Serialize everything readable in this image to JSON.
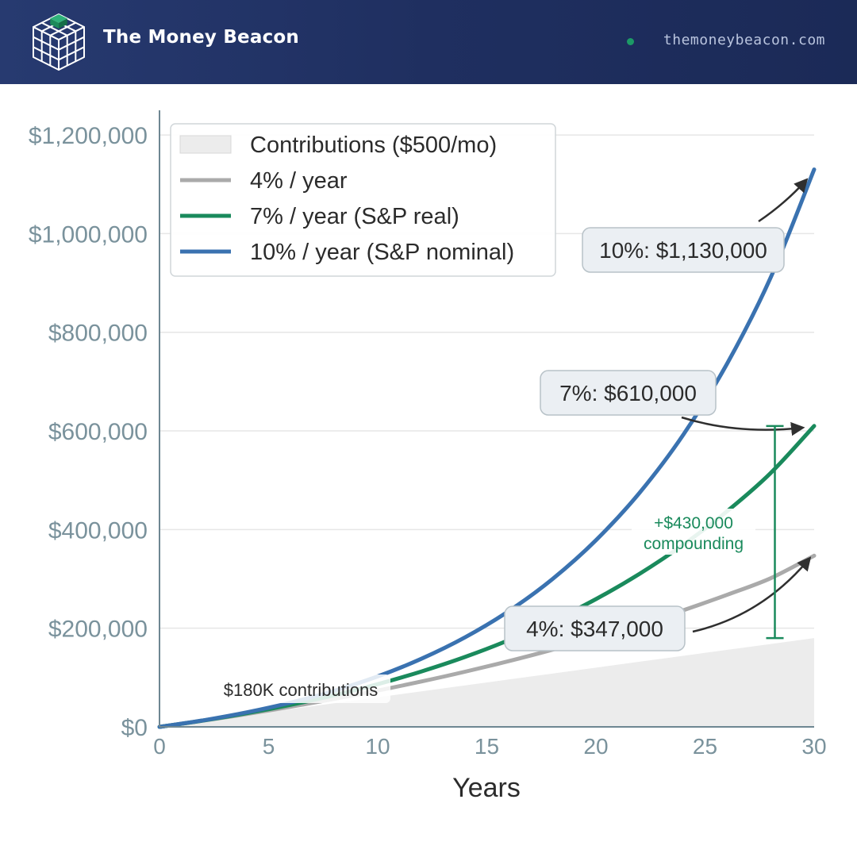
{
  "header": {
    "brand": "The Money Beacon",
    "url": "themoneybeacon.com",
    "logo_icon": "cube-grid-icon"
  },
  "colors": {
    "header_bg": "#1f2f60",
    "accent_green": "#1a8a5c",
    "blue": "#3a72b0",
    "gray": "#aaaaaa",
    "contrib_fill": "#ececec",
    "axis_text": "#7a929c"
  },
  "chart_data": {
    "type": "line",
    "title": "",
    "xlabel": "Years",
    "ylabel": "",
    "xlim": [
      0,
      30
    ],
    "ylim": [
      0,
      1250000
    ],
    "x_ticks": [
      0,
      5,
      10,
      15,
      20,
      25,
      30
    ],
    "x_tick_labels": [
      "0",
      "5",
      "10",
      "15",
      "20",
      "25",
      "30"
    ],
    "y_ticks": [
      0,
      200000,
      400000,
      600000,
      800000,
      1000000,
      1200000
    ],
    "y_tick_labels": [
      "$0",
      "$200,000",
      "$400,000",
      "$600,000",
      "$800,000",
      "$1,000,000",
      "$1,200,000"
    ],
    "grid": "horizontal",
    "legend_position": "top-left",
    "x": [
      0,
      2,
      4,
      6,
      8,
      10,
      12,
      14,
      16,
      18,
      20,
      22,
      24,
      26,
      28,
      30
    ],
    "series": [
      {
        "name": "Contributions ($500/mo)",
        "style": "area",
        "color": "#ececec",
        "values": [
          0,
          12000,
          24000,
          36000,
          48000,
          60000,
          72000,
          84000,
          96000,
          108000,
          120000,
          132000,
          144000,
          156000,
          168000,
          180000
        ]
      },
      {
        "name": "4% / year",
        "style": "line",
        "color": "#aaaaaa",
        "values": [
          0,
          12500,
          26000,
          40700,
          56600,
          73600,
          92000,
          111800,
          133200,
          156300,
          181000,
          207500,
          236400,
          267600,
          301200,
          347000
        ]
      },
      {
        "name": "7% / year (S&P real)",
        "style": "line",
        "color": "#1a8a5c",
        "values": [
          0,
          12850,
          27600,
          44600,
          64100,
          86500,
          112300,
          141700,
          175600,
          214400,
          259000,
          310300,
          369200,
          436700,
          514300,
          610000
        ]
      },
      {
        "name": "10% / year (S&P nominal)",
        "style": "line",
        "color": "#3a72b0",
        "values": [
          0,
          13200,
          29400,
          49100,
          73100,
          102300,
          138000,
          181500,
          234600,
          299400,
          378300,
          474600,
          592100,
          735400,
          910300,
          1130000
        ]
      }
    ],
    "annotations": {
      "label_10": "10%: $1,130,000",
      "label_7": "7%: $610,000",
      "label_4": "4%: $347,000",
      "gap_label_line1": "+$430,000",
      "gap_label_line2": "compounding",
      "gap_from": 180000,
      "gap_to": 610000,
      "gap_x": 28.2,
      "contrib_label": "$180K contributions"
    }
  }
}
